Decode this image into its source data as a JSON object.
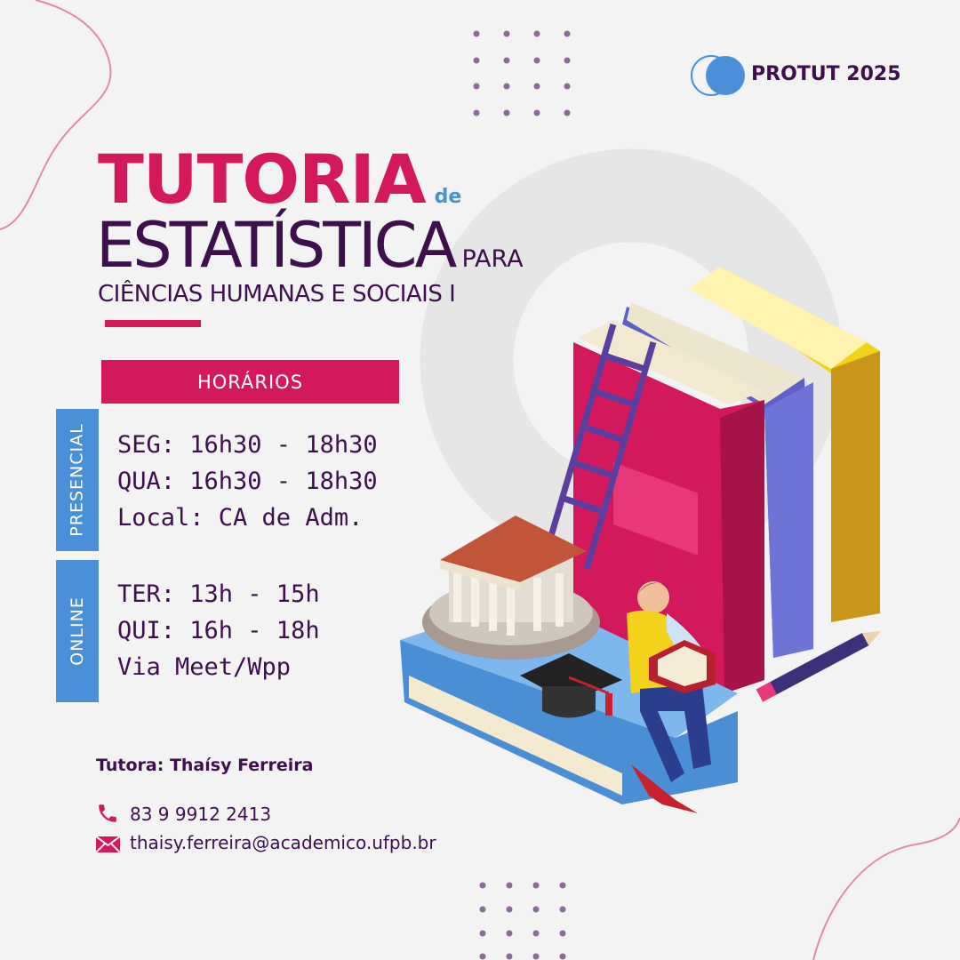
{
  "brand": {
    "name": "PROTUT 2025",
    "colors": {
      "pink": "#d4185c",
      "purple": "#3d0f4d",
      "blue": "#4a90d9",
      "background": "#f3f3f3"
    }
  },
  "title": {
    "line1": "TUTORIA",
    "connector1": "de",
    "line2": "ESTATÍSTICA",
    "connector2": "PARA",
    "subtitle": "CIÊNCIAS HUMANAS E SOCIAIS I"
  },
  "schedule": {
    "header": "HORÁRIOS",
    "presencial": {
      "label": "PRESENCIAL",
      "lines": [
        "SEG: 16h30 - 18h30",
        "QUA: 16h30 - 18h30",
        "Local: CA de Adm."
      ]
    },
    "online": {
      "label": "ONLINE",
      "lines": [
        "TER: 13h - 15h",
        "QUI: 16h - 18h",
        "Via Meet/Wpp"
      ]
    }
  },
  "contact": {
    "tutor": "Tutora: Thaísy Ferreira",
    "phone": "83 9 9912 2413",
    "email": "thaisy.ferreira@academico.ufpb.br",
    "phone_icon": "phone-icon",
    "email_icon": "envelope-icon"
  },
  "illustration": "books-student-illustration"
}
